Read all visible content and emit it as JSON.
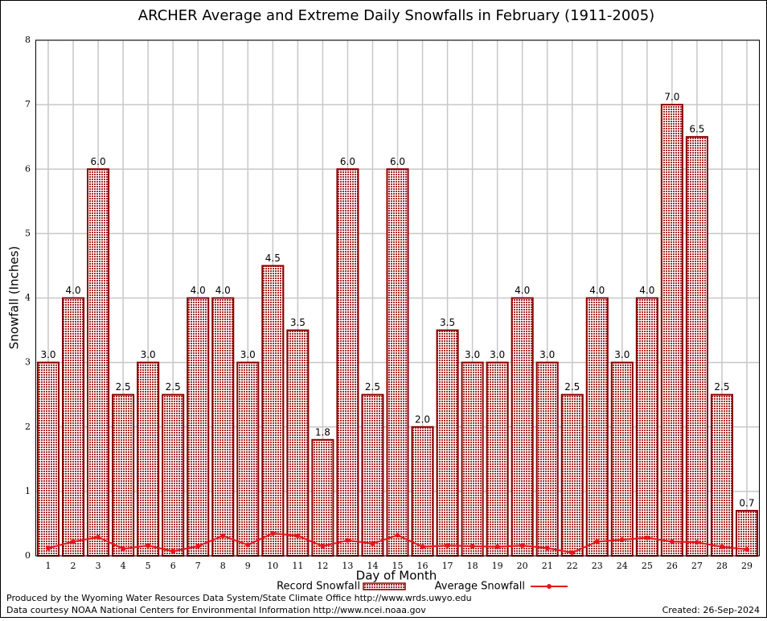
{
  "chart_data": {
    "type": "bar",
    "title": "ARCHER Average and Extreme Daily Snowfalls in February (1911-2005)",
    "x_label": "Day of Month",
    "y_label": "Snowfall (Inches)",
    "categories": [
      "1",
      "2",
      "3",
      "4",
      "5",
      "6",
      "7",
      "8",
      "9",
      "10",
      "11",
      "12",
      "13",
      "14",
      "15",
      "16",
      "17",
      "18",
      "19",
      "20",
      "21",
      "22",
      "23",
      "24",
      "25",
      "26",
      "27",
      "28",
      "29"
    ],
    "series": [
      {
        "name": "Record Snowfall",
        "type": "bar",
        "color": "#a52a2a",
        "values": [
          3.0,
          4.0,
          6.0,
          2.5,
          3.0,
          2.5,
          4.0,
          4.0,
          3.0,
          4.5,
          3.5,
          1.8,
          6.0,
          2.5,
          6.0,
          2.0,
          3.5,
          3.0,
          3.0,
          4.0,
          3.0,
          2.5,
          4.0,
          3.0,
          4.0,
          7.0,
          6.5,
          2.5,
          0.7
        ],
        "value_labels": [
          "3.0",
          "4.0",
          "6.0",
          "2.5",
          "3.0",
          "2.5",
          "4.0",
          "4.0",
          "3.0",
          "4.5",
          "3.5",
          "1.8",
          "6.0",
          "2.5",
          "6.0",
          "2.0",
          "3.5",
          "3.0",
          "3.0",
          "4.0",
          "3.0",
          "2.5",
          "4.0",
          "3.0",
          "4.0",
          "7.0",
          "6.5",
          "2.5",
          "0.7"
        ]
      },
      {
        "name": "Average Snowfall",
        "type": "line",
        "color": "#e8141e",
        "values": [
          0.12,
          0.22,
          0.29,
          0.11,
          0.16,
          0.07,
          0.15,
          0.31,
          0.17,
          0.35,
          0.31,
          0.15,
          0.24,
          0.19,
          0.32,
          0.14,
          0.16,
          0.15,
          0.14,
          0.16,
          0.12,
          0.05,
          0.22,
          0.25,
          0.28,
          0.22,
          0.21,
          0.14,
          0.1
        ]
      }
    ],
    "ylim": [
      0,
      8
    ],
    "yticks": [
      0,
      1,
      2,
      3,
      4,
      5,
      6,
      7,
      8
    ],
    "grid": true,
    "footer_left": [
      "Produced by the Wyoming Water Resources Data System/State Climate Office http://www.wrds.uwyo.edu",
      "Data courtesy NOAA National Centers for Environmental Information http://www.ncei.noaa.gov"
    ],
    "footer_right": "Created:  26-Sep-2024"
  }
}
